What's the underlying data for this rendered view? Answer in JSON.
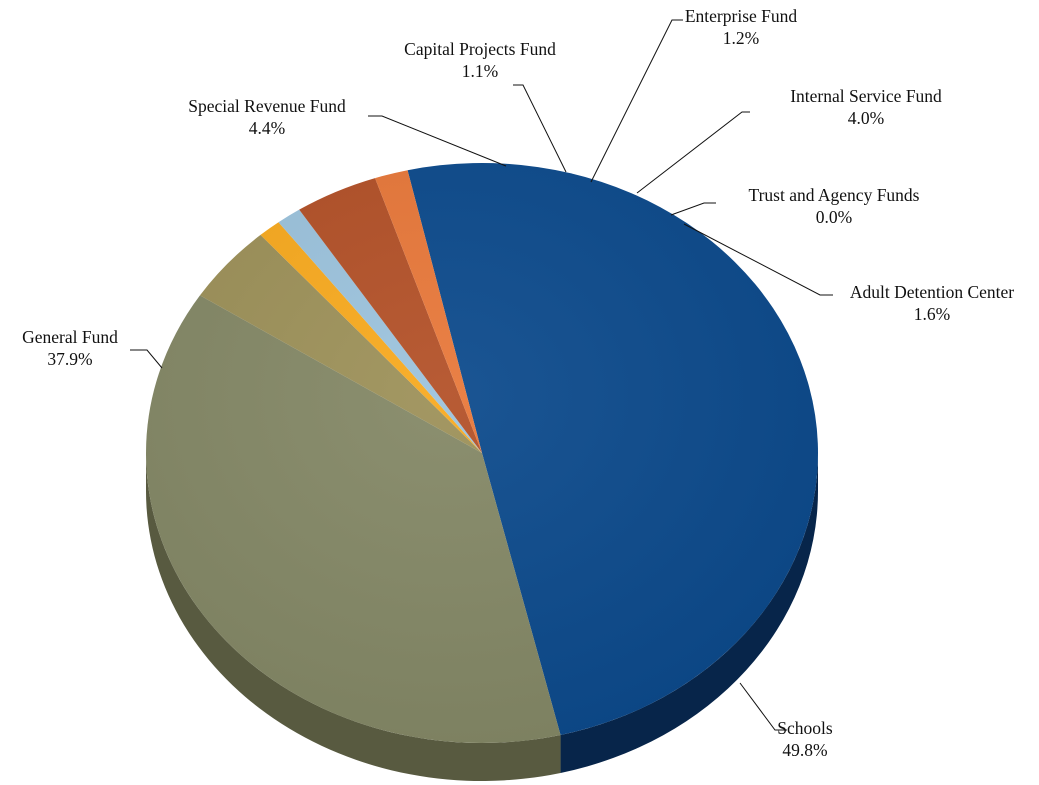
{
  "chart_data": {
    "type": "pie",
    "title": "",
    "slices": [
      {
        "label": "Schools",
        "value": 49.8,
        "value_label": "49.8%",
        "color": "#0c4a8c",
        "side_color": "#07254a"
      },
      {
        "label": "General Fund",
        "value": 37.9,
        "value_label": "37.9%",
        "color": "#848866",
        "side_color": "#585a40"
      },
      {
        "label": "Special Revenue Fund",
        "value": 4.4,
        "value_label": "4.4%",
        "color": "#9d9159",
        "side_color": "#6b6238"
      },
      {
        "label": "Capital Projects Fund",
        "value": 1.1,
        "value_label": "1.1%",
        "color": "#f8aa1f",
        "side_color": "#b27a10"
      },
      {
        "label": "Enterprise Fund",
        "value": 1.2,
        "value_label": "1.2%",
        "color": "#9cc3dd",
        "side_color": "#6a8ea6"
      },
      {
        "label": "Internal Service Fund",
        "value": 4.0,
        "value_label": "4.0%",
        "color": "#b35128",
        "side_color": "#7a3418"
      },
      {
        "label": "Trust and Agency Funds",
        "value": 0.0,
        "value_label": "0.0%",
        "color": "#b35128",
        "side_color": "#7a3418"
      },
      {
        "label": "Adult Detention Center",
        "value": 1.6,
        "value_label": "1.6%",
        "color": "#e8783a",
        "side_color": "#a64f1f"
      }
    ]
  }
}
